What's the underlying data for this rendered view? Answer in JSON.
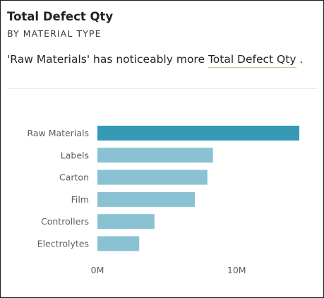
{
  "card": {
    "title": "Total Defect Qty",
    "subtitle": "BY MATERIAL TYPE",
    "insight_prefix": "'Raw Materials' has noticeably more ",
    "insight_measure": "Total Defect Qty",
    "insight_suffix": " ."
  },
  "colors": {
    "highlight_bar": "#3599b8",
    "bar": "#8ac2d4",
    "underline": "#b7cf8e"
  },
  "chart_data": {
    "type": "bar",
    "orientation": "horizontal",
    "categories": [
      "Raw Materials",
      "Labels",
      "Carton",
      "Film",
      "Controllers",
      "Electrolytes"
    ],
    "values": [
      14500000,
      8300000,
      7900000,
      7000000,
      4100000,
      3000000
    ],
    "highlighted_category": "Raw Materials",
    "xlim": [
      0,
      14500000
    ],
    "x_ticks": [
      0,
      10000000
    ],
    "x_tick_labels": [
      "0M",
      "10M"
    ],
    "xlabel": "",
    "ylabel": "",
    "grid": false
  }
}
